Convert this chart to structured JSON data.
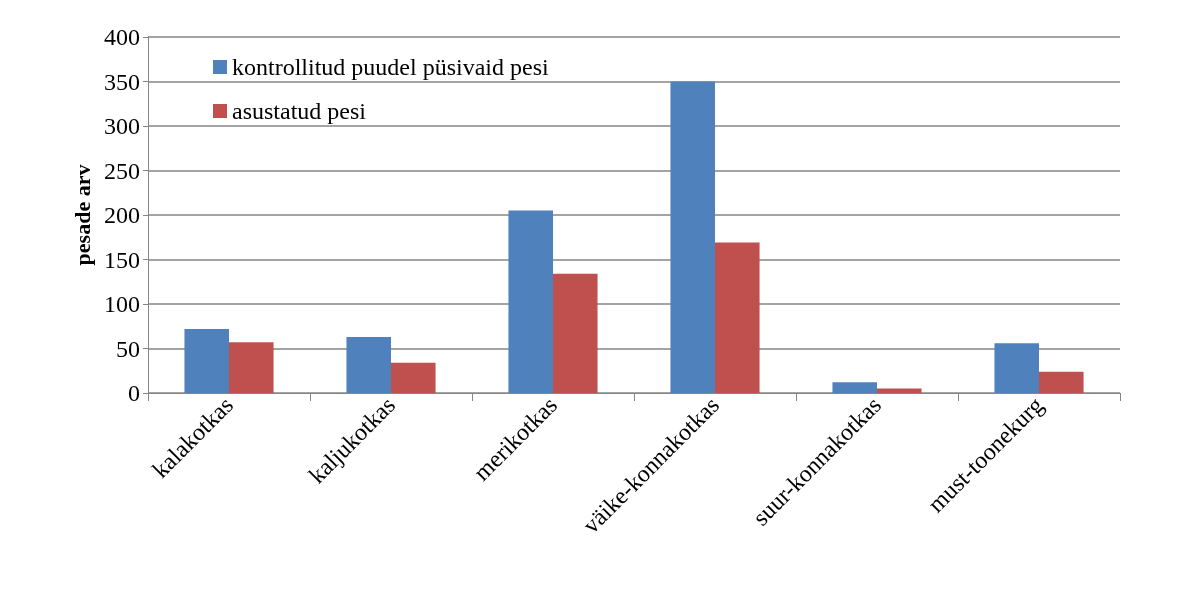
{
  "chart_data": {
    "type": "bar",
    "ylabel": "pesade arv",
    "categories": [
      "kalakotkas",
      "kaljukotkas",
      "merikotkas",
      "väike-konnakotkas",
      "suur-konnakotkas",
      "must-toonekurg"
    ],
    "series": [
      {
        "name": "kontrollitud puudel püsivaid pesi",
        "color": "#4f81bd",
        "values": [
          72,
          63,
          205,
          350,
          12,
          56
        ]
      },
      {
        "name": "asustatud pesi",
        "color": "#c0504d",
        "values": [
          57,
          34,
          134,
          169,
          5,
          24
        ]
      }
    ],
    "ylim": [
      0,
      400
    ],
    "yticks": [
      0,
      50,
      100,
      150,
      200,
      250,
      300,
      350,
      400
    ],
    "grid": "y",
    "legend": "top left"
  }
}
